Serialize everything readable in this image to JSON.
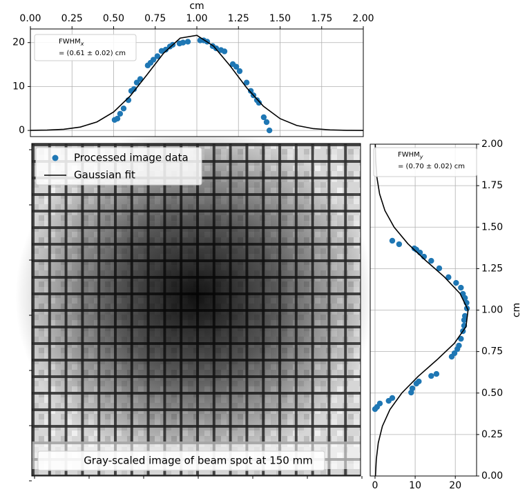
{
  "chart_data": [
    {
      "type": "scatter",
      "xlabel": "cm",
      "xlim": [
        0,
        2
      ],
      "ylim": [
        -1.4,
        23.1
      ],
      "xticks": [
        {
          "value": 0,
          "label": "0.00"
        },
        {
          "value": 0.25,
          "label": "0.25"
        },
        {
          "value": 0.5,
          "label": "0.50"
        },
        {
          "value": 0.75,
          "label": "0.75"
        },
        {
          "value": 1,
          "label": "1.00"
        },
        {
          "value": 1.25,
          "label": "1.25"
        },
        {
          "value": 1.5,
          "label": "1.50"
        },
        {
          "value": 1.75,
          "label": "1.75"
        },
        {
          "value": 2,
          "label": "2.00"
        }
      ],
      "yticks": [
        0,
        10,
        20
      ],
      "grid": true,
      "fwhm_label": "FWHM",
      "fwhm_subscript": "x",
      "fwhm_value": "= (0.61 ± 0.02) cm",
      "series": [
        {
          "name": "Processed image data",
          "type": "scatter",
          "color": "#1f77b4",
          "x": [
            0.506,
            0.523,
            0.539,
            0.56,
            0.589,
            0.606,
            0.622,
            0.639,
            0.66,
            0.705,
            0.722,
            0.739,
            0.763,
            0.788,
            0.813,
            0.838,
            0.855,
            0.896,
            0.917,
            0.946,
            1.02,
            1.041,
            1.062,
            1.095,
            1.116,
            1.145,
            1.166,
            1.216,
            1.237,
            1.257,
            1.299,
            1.324,
            1.34,
            1.361,
            1.373,
            1.402,
            1.419,
            1.436
          ],
          "values": [
            2.4,
            2.7,
            3.8,
            5.0,
            6.9,
            9.0,
            9.4,
            10.9,
            11.7,
            14.8,
            15.4,
            16.1,
            16.9,
            18.1,
            18.4,
            19.1,
            19.5,
            19.8,
            20.0,
            20.2,
            20.5,
            20.5,
            20.2,
            19.2,
            18.7,
            18.3,
            18.0,
            15.1,
            14.5,
            13.5,
            10.9,
            9.0,
            8.0,
            6.9,
            6.3,
            3.0,
            1.9,
            0.0
          ]
        },
        {
          "name": "Gaussian fit",
          "type": "line",
          "color": "#000000",
          "x": [
            0,
            0.1,
            0.2,
            0.3,
            0.4,
            0.5,
            0.6,
            0.7,
            0.8,
            0.9,
            1.0,
            1.1,
            1.2,
            1.3,
            1.4,
            1.5,
            1.6,
            1.7,
            1.8,
            1.9,
            2.0
          ],
          "values": [
            0.02,
            0.08,
            0.26,
            0.77,
            1.94,
            4.2,
            7.86,
            12.66,
            17.58,
            21.02,
            21.65,
            19.22,
            14.7,
            9.68,
            5.5,
            2.69,
            1.13,
            0.41,
            0.13,
            0.03,
            0.01
          ]
        }
      ]
    },
    {
      "type": "scatter",
      "orientation": "horizontal",
      "ylabel": "cm",
      "xlim": [
        -1.2,
        25.3
      ],
      "ylim": [
        0,
        2
      ],
      "xticks": [
        0,
        10,
        20
      ],
      "yticks": [
        {
          "value": 0,
          "label": "0.00"
        },
        {
          "value": 0.25,
          "label": "0.25"
        },
        {
          "value": 0.5,
          "label": "0.50"
        },
        {
          "value": 0.75,
          "label": "0.75"
        },
        {
          "value": 1,
          "label": "1.00"
        },
        {
          "value": 1.25,
          "label": "1.25"
        },
        {
          "value": 1.5,
          "label": "1.50"
        },
        {
          "value": 1.75,
          "label": "1.75"
        },
        {
          "value": 2,
          "label": "2.00"
        }
      ],
      "grid": true,
      "fwhm_label": "FWHM",
      "fwhm_subscript": "y",
      "fwhm_value": "= (0.70 ± 0.02) cm",
      "series": [
        {
          "type": "scatter",
          "color": "#1f77b4",
          "positions": [
            0.403,
            0.416,
            0.437,
            0.453,
            0.47,
            0.503,
            0.528,
            0.557,
            0.57,
            0.603,
            0.615,
            0.719,
            0.74,
            0.765,
            0.786,
            0.827,
            0.873,
            0.906,
            0.94,
            0.965,
            1.01,
            1.044,
            1.073,
            1.098,
            1.135,
            1.164,
            1.198,
            1.252,
            1.297,
            1.322,
            1.347,
            1.364,
            1.372,
            1.397,
            1.418
          ],
          "values": [
            0,
            0.5,
            1.2,
            3.4,
            4.3,
            9.0,
            9.3,
            10.3,
            10.9,
            14.0,
            15.3,
            19.1,
            19.8,
            20.5,
            20.9,
            21.4,
            21.9,
            22.2,
            22.2,
            22.4,
            22.9,
            22.8,
            22.4,
            21.9,
            21.4,
            20.2,
            18.3,
            16.0,
            14.0,
            12.2,
            11.2,
            10.3,
            9.8,
            6.0,
            4.3
          ]
        },
        {
          "type": "line",
          "color": "#000000",
          "positions": [
            0,
            0.1,
            0.2,
            0.3,
            0.4,
            0.5,
            0.6,
            0.7,
            0.8,
            0.9,
            1.0,
            1.1,
            1.2,
            1.3,
            1.4,
            1.5,
            1.6,
            1.7,
            1.8,
            1.9,
            2.0
          ],
          "values": [
            0.11,
            0.32,
            0.81,
            1.83,
            3.7,
            6.67,
            10.73,
            15.42,
            19.78,
            22.66,
            23.18,
            21.17,
            17.27,
            12.57,
            8.18,
            4.75,
            2.46,
            1.14,
            0.47,
            0.17,
            0.06
          ]
        }
      ]
    },
    {
      "type": "image",
      "caption": "Gray-scaled image of beam spot at 150 mm"
    }
  ]
}
